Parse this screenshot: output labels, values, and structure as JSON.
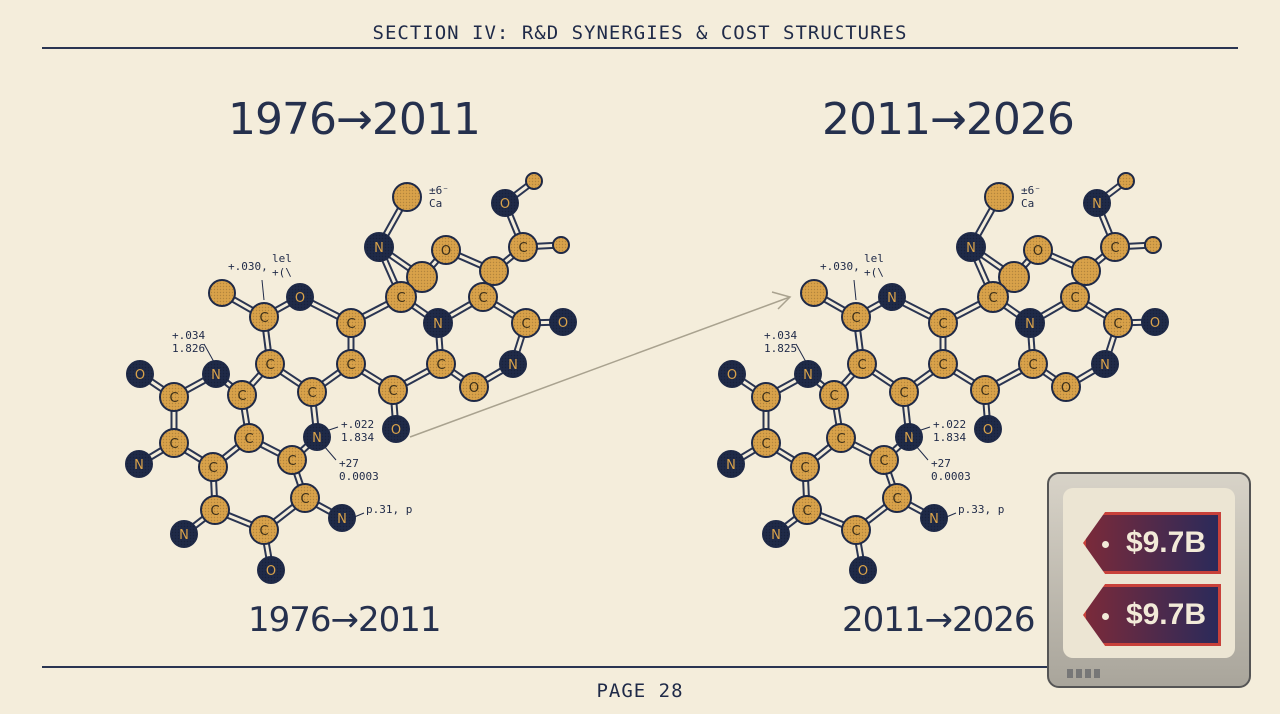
{
  "header": {
    "title": "SECTION IV: R&D SYNERGIES & COST STRUCTURES"
  },
  "left": {
    "title": "1976→2011",
    "subtitle": "1976→2011",
    "atoms": [
      "",
      "N",
      "O",
      "",
      "O",
      "",
      "C",
      "",
      "",
      "C",
      "C",
      "N",
      "C",
      "O",
      "",
      "C",
      "O",
      "C",
      "C",
      "C",
      "C",
      "N",
      "O",
      "C",
      "O",
      "C",
      "N",
      "O",
      "C",
      "C",
      "C",
      "N",
      "C",
      "N",
      "C",
      "C",
      "C",
      "C",
      "N",
      "C",
      "N",
      "O"
    ],
    "annotations": {
      "a1": "+.030,",
      "a1b": "lel",
      "a1c": "+(\\",
      "a2": "+.034",
      "a3": "1.826",
      "a4": "+.022",
      "a5": "1.834",
      "a6": "+27",
      "a7": "0.0003",
      "a8": "p.31, p",
      "a9": "±6⁻",
      "a10": "Ca"
    }
  },
  "right": {
    "title": "2011→2026",
    "subtitle": "2011→2026",
    "atoms": [
      "",
      "N",
      "O",
      "",
      "N",
      "",
      "C",
      "",
      "",
      "C",
      "C",
      "N",
      "C",
      "O",
      "",
      "C",
      "N",
      "C",
      "C",
      "C",
      "C",
      "N",
      "O",
      "C",
      "O",
      "C",
      "N",
      "O",
      "C",
      "C",
      "C",
      "N",
      "C",
      "N",
      "C",
      "C",
      "C",
      "C",
      "N",
      "C",
      "N",
      "O"
    ],
    "annotations": {
      "a1": "+.030,",
      "a1b": "lel",
      "a1c": "+(\\",
      "a2": "+.034",
      "a3": "1.825",
      "a4": "+.022",
      "a5": "1.834",
      "a6": "+27",
      "a7": "0.0003",
      "a8": "p.33, p",
      "a9": "±6⁻",
      "a10": "Ca"
    }
  },
  "price_tags": [
    "$9.7B",
    "$9.7B"
  ],
  "footer": {
    "page": "PAGE 28"
  },
  "colors": {
    "navy": "#1f2a48",
    "gold": "#d9a24a",
    "background": "#f4eddb",
    "tag_border": "#c8413a"
  }
}
